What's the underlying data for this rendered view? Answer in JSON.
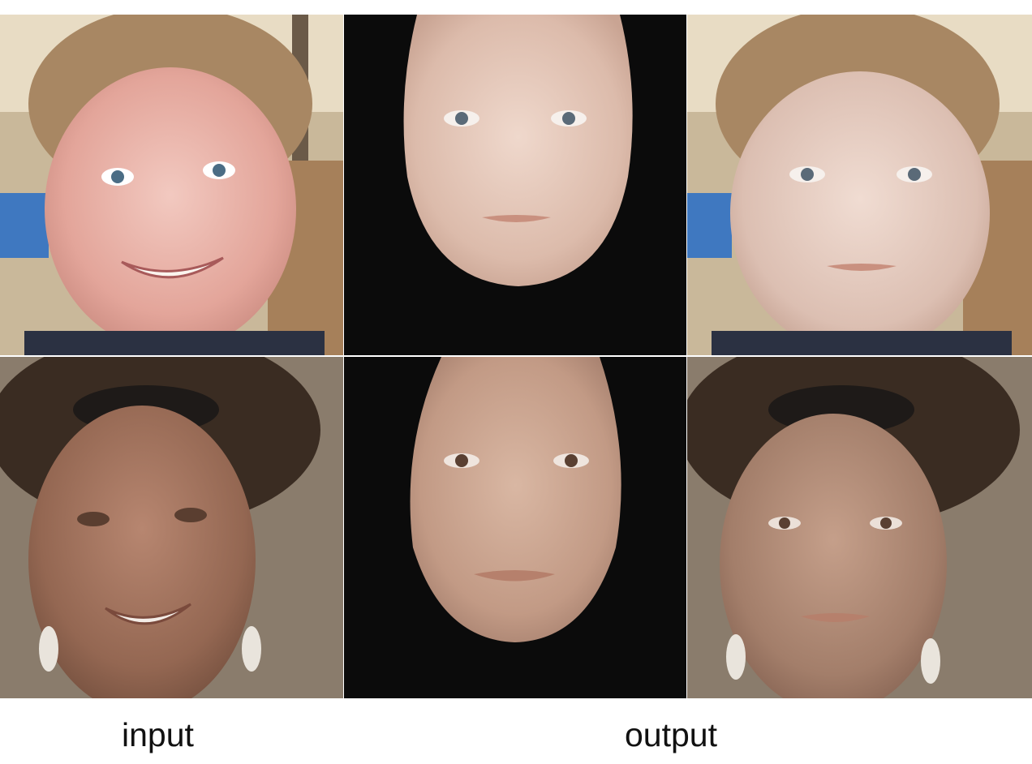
{
  "figure": {
    "captions": {
      "input": "input",
      "output": "output"
    },
    "rows": [
      {
        "subject": "child",
        "panels": [
          "input-photo",
          "output-frontalized-face",
          "output-blended-photo"
        ]
      },
      {
        "subject": "adult-woman",
        "panels": [
          "input-photo",
          "output-frontalized-face",
          "output-blended-photo"
        ]
      }
    ],
    "colors": {
      "background": "#ffffff",
      "mask_background": "#0b0b0b"
    }
  }
}
